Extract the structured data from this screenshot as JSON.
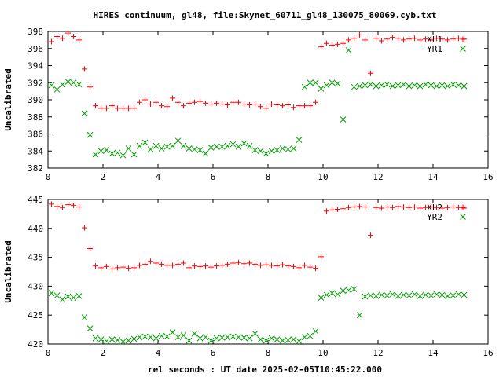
{
  "title": "HIRES continuum, gl48, file:Skynet_60711_gl48_130075_80069.cyb.txt",
  "xlabel": "rel seconds : UT date 2025-02-05T10:45:22.000",
  "colors": {
    "red": "#ff0000",
    "green": "#00a000"
  },
  "chart_data": [
    {
      "type": "scatter",
      "ylabel": "Uncalibrated",
      "xlim": [
        0,
        16
      ],
      "ylim": [
        382,
        398
      ],
      "xticks": [
        0,
        2,
        4,
        6,
        8,
        10,
        12,
        14,
        16
      ],
      "yticks": [
        382,
        384,
        386,
        388,
        390,
        392,
        394,
        396,
        398
      ],
      "legend_position": "top-right",
      "series": [
        {
          "name": "XL1",
          "marker": "plus",
          "color": "#ff0000",
          "x": [
            0.13,
            0.33,
            0.53,
            0.73,
            0.93,
            1.13,
            1.33,
            1.53,
            1.73,
            1.93,
            2.13,
            2.33,
            2.53,
            2.73,
            2.93,
            3.13,
            3.33,
            3.53,
            3.73,
            3.93,
            4.13,
            4.33,
            4.53,
            4.73,
            4.93,
            5.13,
            5.33,
            5.53,
            5.73,
            5.93,
            6.13,
            6.33,
            6.53,
            6.73,
            6.93,
            7.13,
            7.33,
            7.53,
            7.73,
            7.93,
            8.13,
            8.33,
            8.53,
            8.73,
            8.93,
            9.13,
            9.33,
            9.53,
            9.73,
            9.93,
            10.13,
            10.33,
            10.53,
            10.73,
            10.93,
            11.13,
            11.33,
            11.53,
            11.73,
            11.93,
            12.13,
            12.33,
            12.53,
            12.73,
            12.93,
            13.13,
            13.33,
            13.53,
            13.73,
            13.93,
            14.13,
            14.33,
            14.53,
            14.73,
            14.93,
            15.13
          ],
          "y": [
            396.8,
            397.4,
            397.2,
            397.8,
            397.4,
            397.0,
            393.6,
            391.5,
            389.3,
            389.0,
            389.0,
            389.3,
            389.0,
            389.0,
            389.0,
            389.0,
            389.7,
            390.0,
            389.5,
            389.7,
            389.3,
            389.2,
            390.2,
            389.7,
            389.3,
            389.6,
            389.7,
            389.8,
            389.6,
            389.5,
            389.6,
            389.5,
            389.4,
            389.7,
            389.7,
            389.5,
            389.4,
            389.5,
            389.2,
            389.0,
            389.5,
            389.4,
            389.3,
            389.4,
            389.1,
            389.3,
            389.3,
            389.3,
            389.7,
            396.2,
            396.6,
            396.4,
            396.5,
            396.6,
            397.0,
            397.2,
            397.6,
            397.0,
            393.1,
            397.2,
            396.9,
            397.1,
            397.3,
            397.2,
            397.0,
            397.1,
            397.2,
            397.0,
            397.1,
            397.0,
            397.2,
            397.1,
            397.0,
            397.1,
            397.2,
            397.1
          ]
        },
        {
          "name": "YR1",
          "marker": "cross",
          "color": "#00a000",
          "x": [
            0.13,
            0.33,
            0.53,
            0.73,
            0.93,
            1.13,
            1.33,
            1.53,
            1.73,
            1.93,
            2.13,
            2.33,
            2.53,
            2.73,
            2.93,
            3.13,
            3.33,
            3.53,
            3.73,
            3.93,
            4.13,
            4.33,
            4.53,
            4.73,
            4.93,
            5.13,
            5.33,
            5.53,
            5.73,
            5.93,
            6.13,
            6.33,
            6.53,
            6.73,
            6.93,
            7.13,
            7.33,
            7.53,
            7.73,
            7.93,
            8.13,
            8.33,
            8.53,
            8.73,
            8.93,
            9.13,
            9.33,
            9.53,
            9.73,
            9.93,
            10.13,
            10.33,
            10.53,
            10.73,
            10.93,
            11.13,
            11.33,
            11.53,
            11.73,
            11.93,
            12.13,
            12.33,
            12.53,
            12.73,
            12.93,
            13.13,
            13.33,
            13.53,
            13.73,
            13.93,
            14.13,
            14.33,
            14.53,
            14.73,
            14.93,
            15.13
          ],
          "y": [
            391.7,
            391.2,
            391.8,
            392.1,
            392.0,
            391.8,
            388.4,
            385.9,
            383.6,
            384.0,
            384.1,
            383.7,
            383.8,
            383.5,
            384.3,
            383.6,
            384.6,
            385.0,
            384.2,
            384.6,
            384.3,
            384.5,
            384.6,
            385.2,
            384.6,
            384.3,
            384.2,
            384.1,
            383.7,
            384.4,
            384.5,
            384.5,
            384.6,
            384.8,
            384.5,
            384.9,
            384.6,
            384.1,
            384.0,
            383.7,
            384.0,
            384.1,
            384.3,
            384.2,
            384.3,
            385.3,
            391.5,
            392.0,
            392.0,
            391.3,
            391.7,
            392.0,
            391.9,
            387.7,
            395.8,
            391.5,
            391.6,
            391.7,
            391.8,
            391.6,
            391.7,
            391.8,
            391.6,
            391.7,
            391.8,
            391.6,
            391.7,
            391.6,
            391.8,
            391.7,
            391.6,
            391.7,
            391.6,
            391.8,
            391.7,
            391.6
          ]
        }
      ]
    },
    {
      "type": "scatter",
      "ylabel": "Uncalibrated",
      "xlim": [
        0,
        16
      ],
      "ylim": [
        420,
        445
      ],
      "xticks": [
        0,
        2,
        4,
        6,
        8,
        10,
        12,
        14,
        16
      ],
      "yticks": [
        420,
        425,
        430,
        435,
        440,
        445
      ],
      "legend_position": "top-right",
      "series": [
        {
          "name": "XL2",
          "marker": "plus",
          "color": "#ff0000",
          "x": [
            0.13,
            0.33,
            0.53,
            0.73,
            0.93,
            1.13,
            1.33,
            1.53,
            1.73,
            1.93,
            2.13,
            2.33,
            2.53,
            2.73,
            2.93,
            3.13,
            3.33,
            3.53,
            3.73,
            3.93,
            4.13,
            4.33,
            4.53,
            4.73,
            4.93,
            5.13,
            5.33,
            5.53,
            5.73,
            5.93,
            6.13,
            6.33,
            6.53,
            6.73,
            6.93,
            7.13,
            7.33,
            7.53,
            7.73,
            7.93,
            8.13,
            8.33,
            8.53,
            8.73,
            8.93,
            9.13,
            9.33,
            9.53,
            9.73,
            9.93,
            10.13,
            10.33,
            10.53,
            10.73,
            10.93,
            11.13,
            11.33,
            11.53,
            11.73,
            11.93,
            12.13,
            12.33,
            12.53,
            12.73,
            12.93,
            13.13,
            13.33,
            13.53,
            13.73,
            13.93,
            14.13,
            14.33,
            14.53,
            14.73,
            14.93,
            15.13
          ],
          "y": [
            444.2,
            443.8,
            443.6,
            444.1,
            444.0,
            443.7,
            440.1,
            436.5,
            433.5,
            433.2,
            433.4,
            433.0,
            433.2,
            433.3,
            433.1,
            433.2,
            433.6,
            433.8,
            434.3,
            434.0,
            433.8,
            433.6,
            433.6,
            433.8,
            434.0,
            433.2,
            433.5,
            433.4,
            433.5,
            433.3,
            433.5,
            433.6,
            433.8,
            434.0,
            434.1,
            433.9,
            434.0,
            433.8,
            433.6,
            433.7,
            433.6,
            433.5,
            433.7,
            433.5,
            433.4,
            433.2,
            433.6,
            433.3,
            433.1,
            435.1,
            443.0,
            443.2,
            443.3,
            443.4,
            443.6,
            443.7,
            443.8,
            443.7,
            438.8,
            443.6,
            443.5,
            443.7,
            443.6,
            443.8,
            443.7,
            443.6,
            443.7,
            443.5,
            443.6,
            443.7,
            443.6,
            443.5,
            443.6,
            443.7,
            443.6,
            443.5
          ]
        },
        {
          "name": "YR2",
          "marker": "cross",
          "color": "#00a000",
          "x": [
            0.13,
            0.33,
            0.53,
            0.73,
            0.93,
            1.13,
            1.33,
            1.53,
            1.73,
            1.93,
            2.13,
            2.33,
            2.53,
            2.73,
            2.93,
            3.13,
            3.33,
            3.53,
            3.73,
            3.93,
            4.13,
            4.33,
            4.53,
            4.73,
            4.93,
            5.13,
            5.33,
            5.53,
            5.73,
            5.93,
            6.13,
            6.33,
            6.53,
            6.73,
            6.93,
            7.13,
            7.33,
            7.53,
            7.73,
            7.93,
            8.13,
            8.33,
            8.53,
            8.73,
            8.93,
            9.13,
            9.33,
            9.53,
            9.73,
            9.93,
            10.13,
            10.33,
            10.53,
            10.73,
            10.93,
            11.13,
            11.33,
            11.53,
            11.73,
            11.93,
            12.13,
            12.33,
            12.53,
            12.73,
            12.93,
            13.13,
            13.33,
            13.53,
            13.73,
            13.93,
            14.13,
            14.33,
            14.53,
            14.73,
            14.93,
            15.13
          ],
          "y": [
            428.8,
            428.4,
            427.7,
            428.2,
            428.0,
            428.3,
            424.6,
            422.7,
            421.0,
            420.8,
            420.5,
            420.8,
            420.7,
            420.4,
            420.6,
            420.9,
            421.2,
            421.3,
            421.2,
            421.0,
            421.4,
            421.3,
            422.0,
            421.2,
            421.5,
            420.6,
            421.8,
            421.0,
            421.2,
            420.6,
            421.0,
            421.1,
            421.2,
            421.3,
            421.2,
            421.1,
            421.0,
            421.8,
            420.8,
            420.6,
            421.0,
            420.8,
            420.6,
            420.7,
            420.8,
            420.5,
            421.2,
            421.4,
            422.2,
            428.0,
            428.5,
            428.8,
            428.6,
            429.2,
            429.3,
            429.5,
            425.0,
            428.2,
            428.4,
            428.3,
            428.5,
            428.4,
            428.6,
            428.3,
            428.5,
            428.4,
            428.6,
            428.3,
            428.5,
            428.4,
            428.6,
            428.5,
            428.3,
            428.4,
            428.6,
            428.5
          ]
        }
      ]
    }
  ]
}
